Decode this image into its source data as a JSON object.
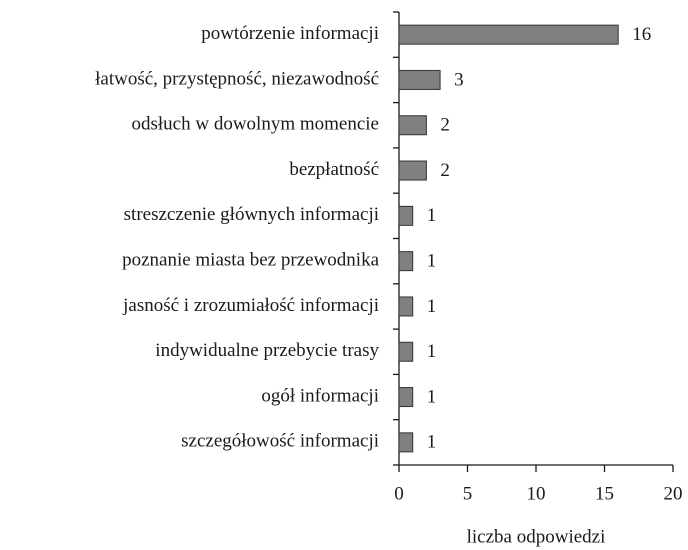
{
  "chart_data": {
    "type": "bar",
    "orientation": "horizontal",
    "categories": [
      "powtórzenie informacji",
      "łatwość, przystępność, niezawodność",
      "odsłuch w dowolnym momencie",
      "bezpłatność",
      "streszczenie głównych informacji",
      "poznanie miasta bez przewodnika",
      "jasność i zrozumiałość informacji",
      "indywidualne przebycie trasy",
      "ogół informacji",
      "szczegółowość informacji"
    ],
    "values": [
      16,
      3,
      2,
      2,
      1,
      1,
      1,
      1,
      1,
      1
    ],
    "color": "#808080",
    "xlabel": "liczba odpowiedzi",
    "xlim": [
      0,
      20
    ],
    "xticks": [
      0,
      5,
      10,
      15,
      20
    ]
  }
}
